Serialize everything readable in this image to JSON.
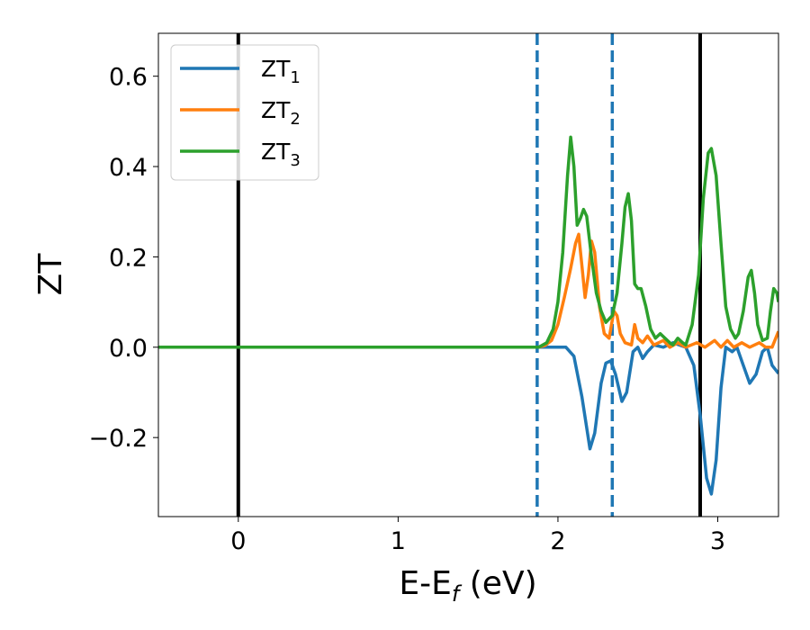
{
  "chart_data": {
    "type": "line",
    "xlabel": {
      "main": "E-E",
      "sub": "f",
      "unit": " (eV)"
    },
    "ylabel": "ZT",
    "xlim": [
      -0.5,
      3.38
    ],
    "ylim": [
      -0.375,
      0.695
    ],
    "x_ticks": [
      {
        "value": 0,
        "label": "0"
      },
      {
        "value": 1,
        "label": "1"
      },
      {
        "value": 2,
        "label": "2"
      },
      {
        "value": 3,
        "label": "3"
      }
    ],
    "y_ticks": [
      {
        "value": -0.2,
        "label": "−0.2"
      },
      {
        "value": 0.0,
        "label": "0.0"
      },
      {
        "value": 0.2,
        "label": "0.2"
      },
      {
        "value": 0.4,
        "label": "0.4"
      },
      {
        "value": 0.6,
        "label": "0.6"
      }
    ],
    "grid": false,
    "legend_position": "top-left",
    "vlines": [
      {
        "x": 0.0,
        "style": "solid",
        "color": "#000000"
      },
      {
        "x": 2.89,
        "style": "solid",
        "color": "#000000"
      },
      {
        "x": 1.87,
        "style": "dashed",
        "color": "#1f77b4"
      },
      {
        "x": 2.34,
        "style": "dashed",
        "color": "#1f77b4"
      }
    ],
    "series": [
      {
        "name": "ZT",
        "sub": "1",
        "color": "#1f77b4",
        "points": [
          [
            -0.5,
            0
          ],
          [
            1.85,
            0
          ],
          [
            2.05,
            0
          ],
          [
            2.1,
            -0.02
          ],
          [
            2.15,
            -0.11
          ],
          [
            2.2,
            -0.225
          ],
          [
            2.23,
            -0.19
          ],
          [
            2.27,
            -0.08
          ],
          [
            2.3,
            -0.035
          ],
          [
            2.33,
            -0.03
          ],
          [
            2.36,
            -0.06
          ],
          [
            2.4,
            -0.12
          ],
          [
            2.43,
            -0.1
          ],
          [
            2.47,
            -0.01
          ],
          [
            2.5,
            0
          ],
          [
            2.53,
            -0.025
          ],
          [
            2.56,
            -0.01
          ],
          [
            2.6,
            0.005
          ],
          [
            2.66,
            0
          ],
          [
            2.72,
            0.01
          ],
          [
            2.8,
            0
          ],
          [
            2.85,
            -0.04
          ],
          [
            2.89,
            -0.15
          ],
          [
            2.93,
            -0.29
          ],
          [
            2.96,
            -0.325
          ],
          [
            2.99,
            -0.25
          ],
          [
            3.02,
            -0.09
          ],
          [
            3.05,
            0
          ],
          [
            3.09,
            -0.01
          ],
          [
            3.12,
            0
          ],
          [
            3.16,
            -0.04
          ],
          [
            3.2,
            -0.08
          ],
          [
            3.24,
            -0.06
          ],
          [
            3.28,
            -0.01
          ],
          [
            3.31,
            0
          ],
          [
            3.34,
            -0.04
          ],
          [
            3.38,
            -0.058
          ]
        ]
      },
      {
        "name": "ZT",
        "sub": "2",
        "color": "#ff7f0e",
        "points": [
          [
            -0.5,
            0
          ],
          [
            1.88,
            0
          ],
          [
            1.92,
            0.004
          ],
          [
            1.96,
            0.015
          ],
          [
            2.0,
            0.05
          ],
          [
            2.04,
            0.11
          ],
          [
            2.08,
            0.175
          ],
          [
            2.11,
            0.23
          ],
          [
            2.13,
            0.25
          ],
          [
            2.15,
            0.18
          ],
          [
            2.17,
            0.11
          ],
          [
            2.19,
            0.16
          ],
          [
            2.21,
            0.235
          ],
          [
            2.23,
            0.21
          ],
          [
            2.26,
            0.09
          ],
          [
            2.29,
            0.03
          ],
          [
            2.32,
            0.02
          ],
          [
            2.35,
            0.08
          ],
          [
            2.37,
            0.07
          ],
          [
            2.39,
            0.03
          ],
          [
            2.42,
            0.01
          ],
          [
            2.46,
            0.005
          ],
          [
            2.48,
            0.05
          ],
          [
            2.5,
            0.02
          ],
          [
            2.53,
            0.01
          ],
          [
            2.56,
            0.025
          ],
          [
            2.6,
            0.005
          ],
          [
            2.66,
            0.015
          ],
          [
            2.7,
            0
          ],
          [
            2.75,
            0.01
          ],
          [
            2.8,
            0
          ],
          [
            2.87,
            0.01
          ],
          [
            2.92,
            0
          ],
          [
            2.98,
            0.015
          ],
          [
            3.02,
            0
          ],
          [
            3.06,
            0.015
          ],
          [
            3.1,
            0
          ],
          [
            3.15,
            0.01
          ],
          [
            3.2,
            0
          ],
          [
            3.26,
            0.01
          ],
          [
            3.3,
            0
          ],
          [
            3.34,
            0
          ],
          [
            3.38,
            0.035
          ]
        ]
      },
      {
        "name": "ZT",
        "sub": "3",
        "color": "#2ca02c",
        "points": [
          [
            -0.5,
            0
          ],
          [
            1.88,
            0
          ],
          [
            1.93,
            0.01
          ],
          [
            1.97,
            0.04
          ],
          [
            2.0,
            0.1
          ],
          [
            2.03,
            0.21
          ],
          [
            2.06,
            0.38
          ],
          [
            2.08,
            0.465
          ],
          [
            2.1,
            0.4
          ],
          [
            2.12,
            0.27
          ],
          [
            2.14,
            0.285
          ],
          [
            2.16,
            0.305
          ],
          [
            2.18,
            0.29
          ],
          [
            2.21,
            0.2
          ],
          [
            2.24,
            0.12
          ],
          [
            2.27,
            0.08
          ],
          [
            2.3,
            0.055
          ],
          [
            2.34,
            0.07
          ],
          [
            2.37,
            0.12
          ],
          [
            2.4,
            0.23
          ],
          [
            2.42,
            0.31
          ],
          [
            2.44,
            0.34
          ],
          [
            2.46,
            0.28
          ],
          [
            2.48,
            0.14
          ],
          [
            2.5,
            0.13
          ],
          [
            2.52,
            0.13
          ],
          [
            2.55,
            0.09
          ],
          [
            2.58,
            0.04
          ],
          [
            2.61,
            0.02
          ],
          [
            2.64,
            0.03
          ],
          [
            2.67,
            0.02
          ],
          [
            2.7,
            0.01
          ],
          [
            2.72,
            0.005
          ],
          [
            2.75,
            0.02
          ],
          [
            2.78,
            0.01
          ],
          [
            2.8,
            0.005
          ],
          [
            2.84,
            0.05
          ],
          [
            2.88,
            0.16
          ],
          [
            2.91,
            0.33
          ],
          [
            2.94,
            0.43
          ],
          [
            2.96,
            0.44
          ],
          [
            2.99,
            0.38
          ],
          [
            3.02,
            0.23
          ],
          [
            3.05,
            0.09
          ],
          [
            3.08,
            0.04
          ],
          [
            3.11,
            0.02
          ],
          [
            3.13,
            0.03
          ],
          [
            3.16,
            0.08
          ],
          [
            3.19,
            0.155
          ],
          [
            3.21,
            0.17
          ],
          [
            3.23,
            0.12
          ],
          [
            3.25,
            0.05
          ],
          [
            3.28,
            0.015
          ],
          [
            3.31,
            0.02
          ],
          [
            3.33,
            0.08
          ],
          [
            3.35,
            0.13
          ],
          [
            3.37,
            0.12
          ],
          [
            3.38,
            0.1
          ]
        ]
      }
    ]
  }
}
